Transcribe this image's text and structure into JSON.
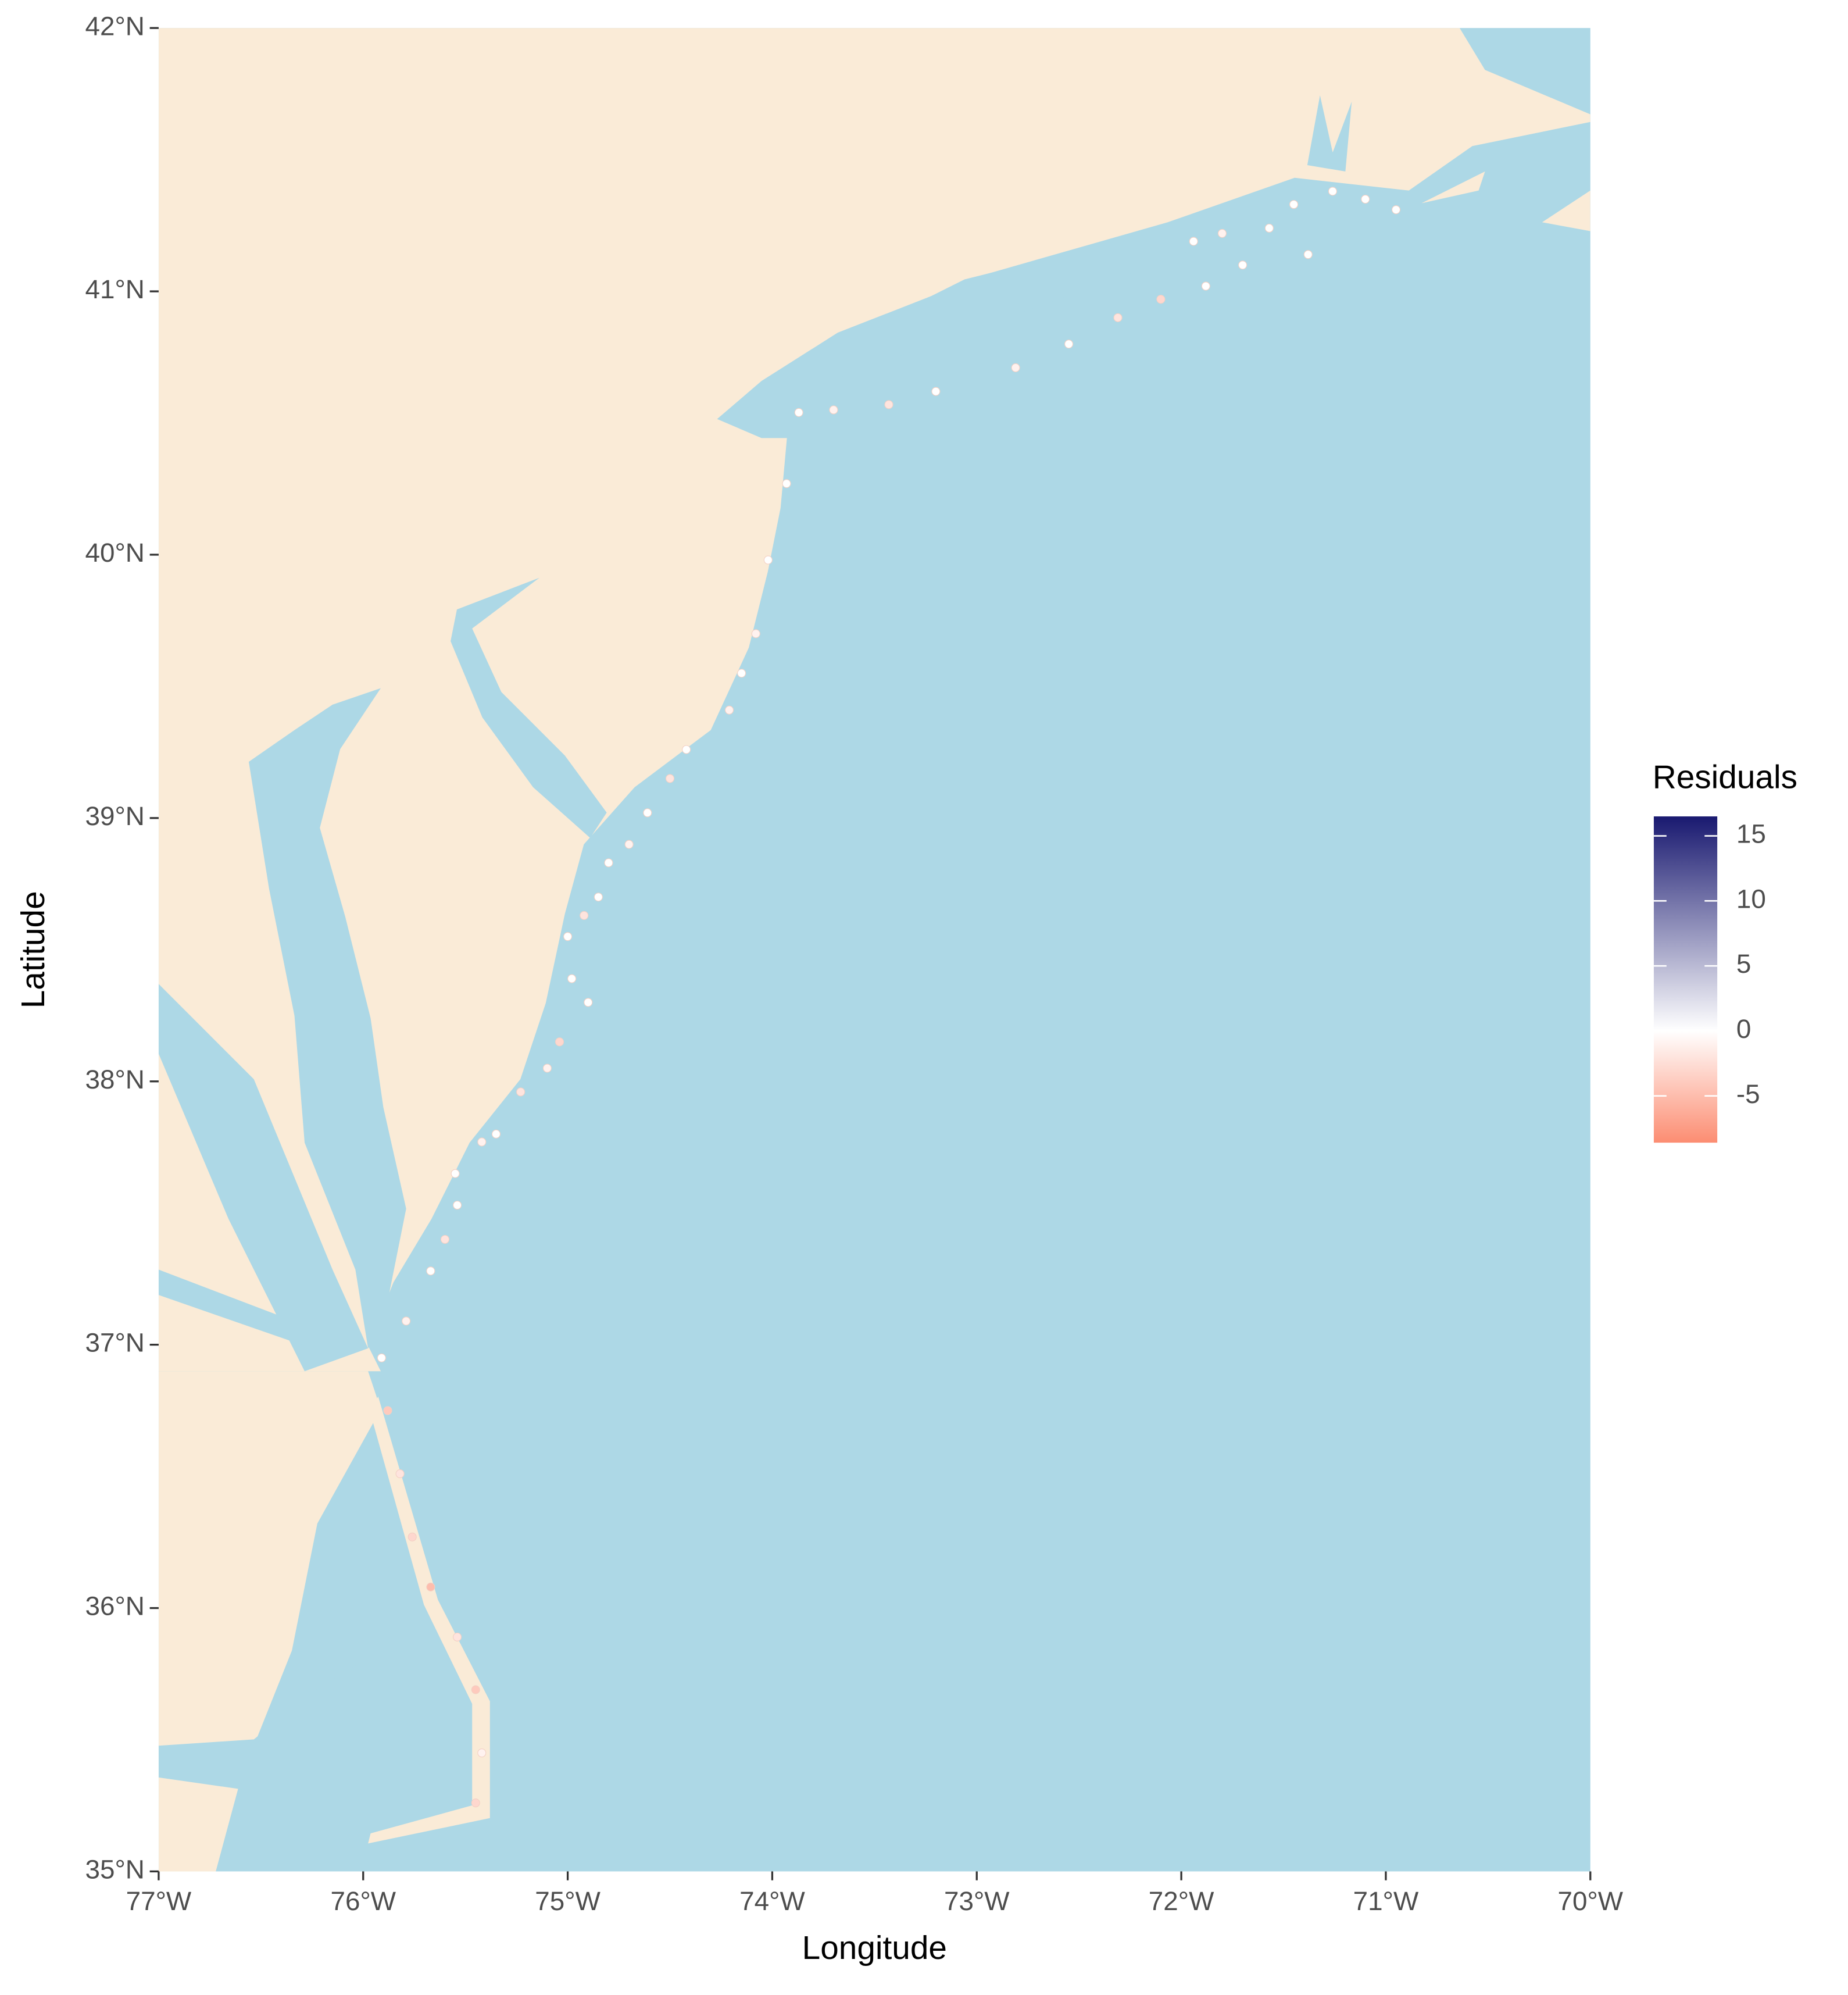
{
  "chart_data": {
    "type": "map",
    "x_label": "Longitude",
    "y_label": "Latitude",
    "xlim": [
      -77,
      -70
    ],
    "ylim": [
      35,
      42
    ],
    "xticks": [
      {
        "value": -77,
        "label": "77°W"
      },
      {
        "value": -76,
        "label": "76°W"
      },
      {
        "value": -75,
        "label": "75°W"
      },
      {
        "value": -74,
        "label": "74°W"
      },
      {
        "value": -73,
        "label": "73°W"
      },
      {
        "value": -72,
        "label": "72°W"
      },
      {
        "value": -71,
        "label": "71°W"
      },
      {
        "value": -70,
        "label": "70°W"
      }
    ],
    "yticks": [
      {
        "value": 35,
        "label": "35°N"
      },
      {
        "value": 36,
        "label": "36°N"
      },
      {
        "value": 37,
        "label": "37°N"
      },
      {
        "value": 38,
        "label": "38°N"
      },
      {
        "value": 39,
        "label": "39°N"
      },
      {
        "value": 40,
        "label": "40°N"
      },
      {
        "value": 41,
        "label": "41°N"
      },
      {
        "value": 42,
        "label": "42°N"
      }
    ],
    "x": [
      -73.87,
      -73.7,
      -73.43,
      -73.2,
      -72.81,
      -72.55,
      -72.31,
      -72.1,
      -71.88,
      -71.94,
      -71.8,
      -71.57,
      -71.45,
      -71.26,
      -71.1,
      -70.95,
      -71.38,
      -71.7,
      -73.93,
      -74.02,
      -74.08,
      -74.15,
      -74.21,
      -74.42,
      -74.5,
      -74.61,
      -74.7,
      -74.8,
      -74.92,
      -74.85,
      -74.98,
      -75.04,
      -75.1,
      -75.23,
      -75.35,
      -75.42,
      -75.54,
      -75.6,
      -75.67,
      -75.79,
      -75.91,
      -75.88,
      -75.82,
      -75.76,
      -75.67,
      -75.54,
      -75.45,
      -75.42,
      -75.45,
      -75.0,
      -74.9,
      -75.55
    ],
    "y": [
      40.54,
      40.55,
      40.57,
      40.62,
      40.71,
      40.8,
      40.9,
      40.97,
      41.02,
      41.19,
      41.22,
      41.24,
      41.33,
      41.38,
      41.35,
      41.31,
      41.14,
      41.1,
      40.27,
      39.98,
      39.7,
      39.55,
      39.41,
      39.26,
      39.15,
      39.02,
      38.9,
      38.83,
      38.63,
      38.7,
      38.39,
      38.15,
      38.05,
      37.96,
      37.8,
      37.77,
      37.53,
      37.4,
      37.28,
      37.09,
      36.95,
      36.75,
      36.51,
      36.27,
      36.08,
      35.89,
      35.69,
      35.45,
      35.26,
      38.55,
      38.3,
      37.65
    ],
    "values": [
      0,
      -1,
      -2,
      0,
      -1,
      0,
      -2,
      -3,
      0,
      0,
      -1,
      0,
      0,
      0,
      0,
      0,
      0,
      0,
      0,
      0,
      -1,
      0,
      -1,
      0,
      -2,
      0,
      -1,
      0,
      -2,
      0,
      0,
      -3,
      -1,
      -2,
      0,
      -1,
      0,
      -2,
      0,
      -1,
      0,
      -4,
      -2,
      -3,
      -5,
      -2,
      -4,
      -1,
      -3,
      0,
      0,
      0
    ],
    "colorbar": {
      "title": "Residuals",
      "lim": [
        -8.6,
        16.5
      ],
      "ticks": [
        -5,
        0,
        5,
        10,
        15
      ],
      "low_color": "#fc8d72",
      "mid_color": "#ffffff",
      "high_color": "#191970"
    },
    "land_color": "#faebd7",
    "water_color": "#add8e6"
  }
}
